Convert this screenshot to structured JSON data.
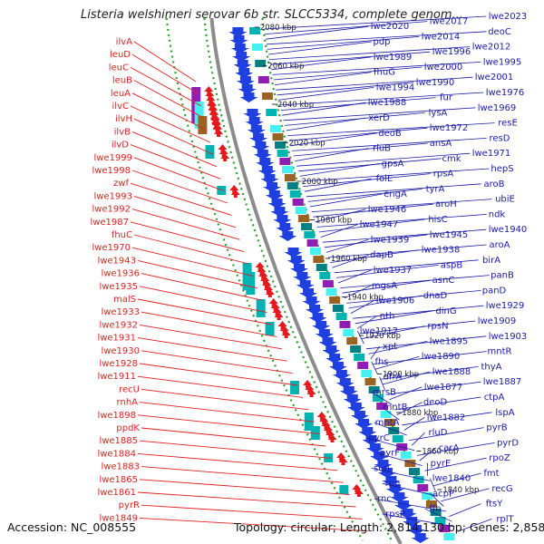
{
  "title": "Listeria welshimeri serovar 6b str. SLCC5334, complete genom...",
  "accession": "Accession: NC_008555",
  "topology": "Topology: circular; Length: 2,814,130 bp; Genes: 2,858",
  "colors": {
    "left_label": "#e02020",
    "right_label": "#1a1aa8",
    "forward_arrow": "#e41a1c",
    "reverse_arrow": "#1f3fe0",
    "backbone": "#8c8c8c",
    "dotted_guide": "#2e9e2e"
  },
  "ruler_ticks": [
    "2080 kbp",
    "2060 kbp",
    "2040 kbp",
    "2020 kbp",
    "2000 kbp",
    "1980 kbp",
    "1960 kbp",
    "1940 kbp",
    "1920 kbp",
    "1900 kbp",
    "1880 kbp",
    "1860 kbp",
    "1840 kbp"
  ],
  "left_labels": [
    "ilvA",
    "leuD",
    "leuC",
    "leuB",
    "leuA",
    "ilvC",
    "ilvH",
    "ilvB",
    "ilvD",
    "lwe1999",
    "lwe1998",
    "zwf",
    "lwe1993",
    "lwe1992",
    "lwe1987",
    "fhuC",
    "lwe1970",
    "lwe1943",
    "lwe1936",
    "lwe1935",
    "malS",
    "lwe1933",
    "lwe1932",
    "lwe1931",
    "lwe1930",
    "lwe1928",
    "lwe1911",
    "recU",
    "rnhA",
    "lwe1898",
    "ppdK",
    "lwe1885",
    "lwe1884",
    "lwe1883",
    "lwe1865",
    "lwe1861",
    "pyrR",
    "lwe1849"
  ],
  "right_labels": [
    "lwe2023",
    "lwe2017",
    "lwe2020",
    "deoC",
    "lwe2014",
    "pdp",
    "lwe2012",
    "lwe1996",
    "lwe1989",
    "lwe1995",
    "lwe2000",
    "fhuG",
    "lwe2001",
    "lwe1990",
    "lwe1994",
    "lwe1976",
    "fur",
    "lwe1988",
    "lwe1969",
    "lysA",
    "xerD",
    "resE",
    "lwe1972",
    "deoB",
    "resD",
    "ansA",
    "rluB",
    "lwe1971",
    "cmk",
    "gpsA",
    "hepS",
    "rpsA",
    "folE",
    "aroB",
    "tyrA",
    "engA",
    "ubiE",
    "aroH",
    "lwe1946",
    "ndk",
    "hisC",
    "lwe1947",
    "lwe1940",
    "lwe1945",
    "lwe1939",
    "aroA",
    "lwe1938",
    "dapB",
    "birA",
    "aspB",
    "lwe1937",
    "panB",
    "asnC",
    "mgsA",
    "panD",
    "dnaD",
    "lwe1906",
    "lwe1929",
    "dinG",
    "nth",
    "lwe1909",
    "rpsN",
    "lwe1912",
    "lwe1903",
    "lwe1895",
    "xpt",
    "mntR",
    "lwe1890",
    "fhs",
    "thyA",
    "lwe1888",
    "dfrA",
    "lwe1887",
    "lwe1877",
    "mrsB",
    "ctpA",
    "deoD",
    "mntB",
    "lspA",
    "lwe1882",
    "mntA",
    "pyrB",
    "rluD",
    "pyrC",
    "pyrD",
    "carA",
    "pyrF",
    "rpoZ",
    "pyrE",
    "sun",
    "fmt",
    "lwe1840",
    "rpe",
    "recG",
    "acpP",
    "rnc",
    "ftsY",
    "ffh",
    "rpsP",
    "rplT"
  ]
}
